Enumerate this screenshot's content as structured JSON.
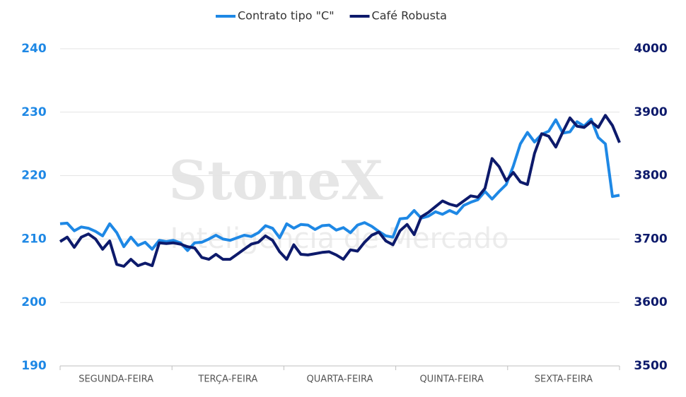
{
  "chart_data": {
    "type": "line",
    "watermark": [
      "StoneX",
      "Inteligência de Mercado"
    ],
    "categories": [
      "SEGUNDA-FEIRA",
      "TERÇA-FEIRA",
      "QUARTA-FEIRA",
      "QUINTA-FEIRA",
      "SEXTA-FEIRA"
    ],
    "series": [
      {
        "name": "Contrato tipo \"C\"",
        "color": "#1e88e5",
        "axis": "y",
        "values": [
          [
            212.4,
            212.5,
            211.3,
            211.9,
            211.7,
            211.2,
            210.5,
            212.4,
            211.0,
            208.8,
            210.3,
            209.0,
            209.5,
            208.4,
            209.8,
            209.6
          ],
          [
            209.8,
            209.4,
            208.2,
            209.4,
            209.5,
            210.0,
            210.6,
            210.0,
            209.8,
            210.2,
            210.6,
            210.4,
            211.0,
            212.1,
            211.7,
            210.2
          ],
          [
            212.4,
            211.7,
            212.3,
            212.2,
            211.5,
            212.1,
            212.2,
            211.4,
            211.8,
            211.0,
            212.2,
            212.6,
            212.0,
            211.2,
            210.5,
            210.3
          ],
          [
            213.2,
            213.3,
            214.5,
            213.3,
            213.6,
            214.3,
            213.9,
            214.5,
            214.0,
            215.3,
            215.8,
            216.2,
            217.5,
            216.3,
            217.5,
            218.6
          ],
          [
            221.5,
            225.0,
            226.8,
            225.3,
            226.5,
            227.0,
            228.8,
            226.7,
            226.9,
            228.5,
            227.8,
            228.9,
            226.0,
            225.0,
            216.7,
            216.9
          ]
        ]
      },
      {
        "name": "Café Robusta",
        "color": "#0d1a6b",
        "axis": "y2",
        "values": [
          [
            3696,
            3703,
            3687,
            3703,
            3708,
            3700,
            3684,
            3697,
            3660,
            3657,
            3668,
            3658,
            3662,
            3658,
            3694,
            3693
          ],
          [
            3694,
            3692,
            3688,
            3686,
            3671,
            3668,
            3676,
            3668,
            3668,
            3676,
            3684,
            3692,
            3695,
            3705,
            3698,
            3680
          ],
          [
            3668,
            3691,
            3676,
            3675,
            3677,
            3679,
            3680,
            3675,
            3668,
            3683,
            3681,
            3695,
            3706,
            3711,
            3697,
            3691
          ],
          [
            3713,
            3723,
            3707,
            3735,
            3742,
            3751,
            3760,
            3755,
            3752,
            3760,
            3768,
            3766,
            3780,
            3827,
            3814,
            3792
          ],
          [
            3805,
            3790,
            3786,
            3835,
            3866,
            3862,
            3845,
            3869,
            3891,
            3878,
            3876,
            3885,
            3876,
            3895,
            3879,
            3852
          ]
        ]
      }
    ],
    "ylim": [
      190,
      240
    ],
    "yticks": [
      190,
      200,
      210,
      220,
      230,
      240
    ],
    "y2lim": [
      3500,
      4000
    ],
    "y2ticks": [
      3500,
      3600,
      3700,
      3800,
      3900,
      4000
    ],
    "grid": true,
    "legend": "top"
  }
}
